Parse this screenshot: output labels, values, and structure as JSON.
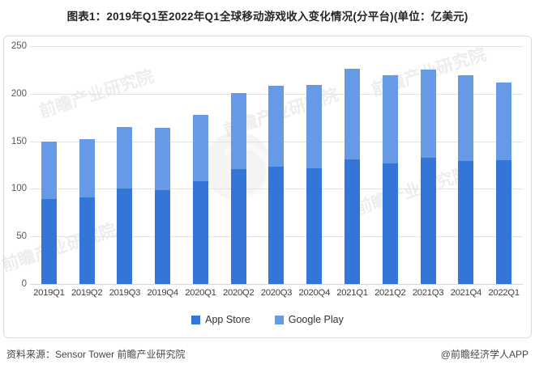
{
  "title": "图表1：2019年Q1至2022年Q1全球移动游戏收入变化情况(分平台)(单位：亿美元)",
  "watermark_text": "前瞻产业研究院",
  "chart_data": {
    "type": "bar",
    "stacked": true,
    "title": "2019年Q1至2022年Q1全球移动游戏收入变化情况(分平台)",
    "unit": "亿美元",
    "categories": [
      "2019Q1",
      "2019Q2",
      "2019Q3",
      "2019Q4",
      "2020Q1",
      "2020Q2",
      "2020Q3",
      "2020Q4",
      "2021Q1",
      "2021Q2",
      "2021Q3",
      "2021Q4",
      "2022Q1"
    ],
    "series": [
      {
        "name": "App Store",
        "color": "#3476d7",
        "values": [
          89,
          91,
          100,
          99,
          108,
          121,
          123,
          122,
          131,
          127,
          133,
          129,
          130
        ]
      },
      {
        "name": "Google Play",
        "color": "#6699e6",
        "values": [
          61,
          61,
          65,
          65,
          70,
          80,
          85,
          87,
          95,
          92,
          92,
          90,
          82
        ]
      }
    ],
    "totals": [
      150,
      152,
      165,
      164,
      178,
      201,
      208,
      209,
      226,
      219,
      225,
      219,
      212
    ],
    "xlabel": "",
    "ylabel": "",
    "ylim": [
      0,
      250
    ],
    "yticks": [
      0,
      50,
      100,
      150,
      200,
      250
    ],
    "grid": true,
    "legend_position": "bottom"
  },
  "footer": {
    "source": "资料来源：Sensor Tower 前瞻产业研究院",
    "brand": "@前瞻经济学人APP"
  }
}
